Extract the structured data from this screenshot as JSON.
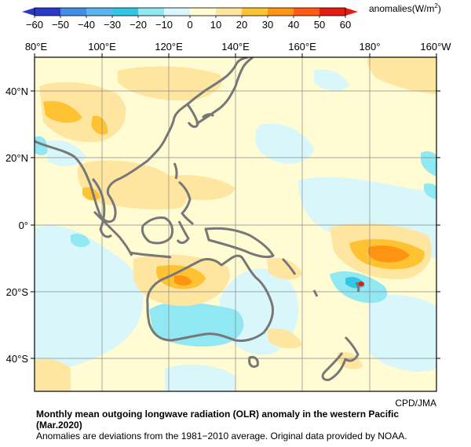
{
  "legend": {
    "unit_text": "anomalies(W/m",
    "unit_sup": "2",
    "unit_close": ")",
    "ticks": [
      "−60",
      "−50",
      "−40",
      "−30",
      "−20",
      "−10",
      "0",
      "10",
      "20",
      "30",
      "40",
      "50",
      "60"
    ],
    "colors": [
      "#2a3ac8",
      "#3f8fe6",
      "#5ab4ef",
      "#34c6e6",
      "#8fe8f2",
      "#d9f7fb",
      "#fffbd2",
      "#ffe6a0",
      "#ffc233",
      "#ff9412",
      "#ff5b14",
      "#e61b10"
    ]
  },
  "axes": {
    "lon_labels": [
      "80°E",
      "100°E",
      "120°E",
      "140°E",
      "160°E",
      "180°",
      "160°W"
    ],
    "lat_labels": [
      "40°N",
      "20°N",
      "0°",
      "20°S",
      "40°S"
    ]
  },
  "credit": "CPD/JMA",
  "caption": {
    "title_line1": "Monthly mean outgoing longwave radiation (OLR) anomaly in the western Pacific",
    "title_line2": "(Mar.2020)",
    "note": "Anomalies are deviations from the 1981−2010 average. Original data provided by NOAA."
  }
}
